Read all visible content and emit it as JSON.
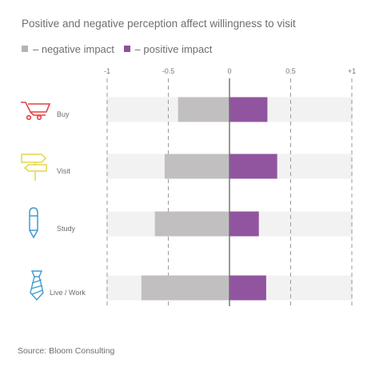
{
  "chart_data": {
    "type": "bar",
    "orientation": "horizontal",
    "title": "Positive and negative perception  affect  willingness  to visit",
    "categories": [
      "Buy",
      "Visit",
      "Study",
      "Live / Work"
    ],
    "category_icons": [
      "shopping-cart-icon",
      "signpost-icon",
      "pencil-icon",
      "necktie-icon"
    ],
    "series": [
      {
        "name": "– negative impact",
        "color": "#c2bfc1",
        "values": [
          -0.42,
          -0.53,
          -0.61,
          -0.72
        ]
      },
      {
        "name": "– positive impact",
        "color": "#9155a0",
        "values": [
          0.31,
          0.39,
          0.24,
          0.3
        ]
      }
    ],
    "xlim": [
      -1,
      1
    ],
    "xticks": [
      {
        "value": -1,
        "label": "-1"
      },
      {
        "value": -0.5,
        "label": "-0.5"
      },
      {
        "value": 0,
        "label": "0"
      },
      {
        "value": 0.5,
        "label": "0.5"
      },
      {
        "value": 1,
        "label": "+1"
      }
    ],
    "grid": true,
    "legend_position": "top-left",
    "band_color": "#f2f2f2",
    "icon_colors": [
      "#e2413f",
      "#e3d64a",
      "#3e9bd2",
      "#3e9bd2"
    ]
  },
  "source": "Source: Bloom Consulting"
}
